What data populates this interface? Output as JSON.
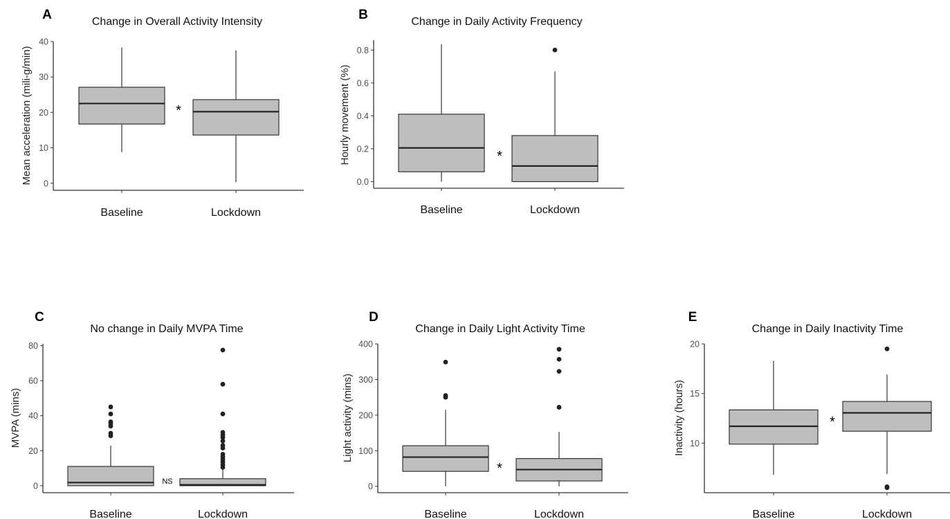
{
  "chart_data": [
    {
      "letter": "A",
      "type": "box",
      "title": "Change in Overall Activity Intensity",
      "ylabel": "Mean acceleration (mili-g/min)",
      "ylim": [
        -2,
        40
      ],
      "yticks": [
        0,
        10,
        20,
        30,
        40
      ],
      "categories": [
        "Baseline",
        "Lockdown"
      ],
      "boxes": [
        {
          "q1": 16.7,
          "median": 22.5,
          "q3": 27.1,
          "whisker_low": 8.8,
          "whisker_high": 38.3,
          "outliers": []
        },
        {
          "q1": 13.6,
          "median": 20.2,
          "q3": 23.6,
          "whisker_low": 0.3,
          "whisker_high": 37.5,
          "outliers": []
        }
      ],
      "significance": "*"
    },
    {
      "letter": "B",
      "type": "box",
      "title": "Change in Daily Activity Frequency",
      "ylabel": "Hourly movement (%)",
      "ylim": [
        -0.04,
        0.86
      ],
      "yticks": [
        0.0,
        0.2,
        0.4,
        0.6,
        0.8
      ],
      "ytick_labels": [
        "0.0",
        "0.2",
        "0.4",
        "0.6",
        "0.8"
      ],
      "categories": [
        "Baseline",
        "Lockdown"
      ],
      "boxes": [
        {
          "q1": 0.06,
          "median": 0.205,
          "q3": 0.41,
          "whisker_low": 0.0,
          "whisker_high": 0.835,
          "outliers": []
        },
        {
          "q1": 0.0,
          "median": 0.095,
          "q3": 0.28,
          "whisker_low": 0.0,
          "whisker_high": 0.67,
          "outliers": [
            0.8
          ]
        }
      ],
      "significance": "*"
    },
    {
      "letter": "C",
      "type": "box",
      "title": "No change in Daily MVPA Time",
      "ylabel": "MVPA (mins)",
      "ylim": [
        -4,
        81
      ],
      "yticks": [
        0,
        20,
        40,
        60,
        80
      ],
      "categories": [
        "Baseline",
        "Lockdown"
      ],
      "boxes": [
        {
          "q1": 0.0,
          "median": 1.8,
          "q3": 11.0,
          "whisker_low": 0.0,
          "whisker_high": 23.0,
          "outliers": [
            28.5,
            30.0,
            34.0,
            35.5,
            36.5,
            41.0,
            45.0
          ]
        },
        {
          "q1": 0.0,
          "median": 0.5,
          "q3": 4.0,
          "whisker_low": 0.0,
          "whisker_high": 9.5,
          "outliers": [
            10.5,
            12.0,
            13.5,
            15.0,
            16.5,
            18.0,
            21.5,
            23.0,
            25.5,
            27.5,
            29.0,
            30.5,
            41.0,
            58.0,
            77.5
          ]
        }
      ],
      "significance": "NS"
    },
    {
      "letter": "D",
      "type": "box",
      "title": "Change in Daily Light Activity Time",
      "ylabel": "Light activity (mins)",
      "ylim": [
        -18,
        400
      ],
      "yticks": [
        0,
        100,
        200,
        300,
        400
      ],
      "categories": [
        "Baseline",
        "Lockdown"
      ],
      "boxes": [
        {
          "q1": 42,
          "median": 82,
          "q3": 114,
          "whisker_low": 0,
          "whisker_high": 215,
          "outliers": [
            250,
            255,
            349
          ]
        },
        {
          "q1": 15,
          "median": 47,
          "q3": 78,
          "whisker_low": 0,
          "whisker_high": 153,
          "outliers": [
            222,
            323,
            357,
            385
          ]
        }
      ],
      "significance": "*"
    },
    {
      "letter": "E",
      "type": "box",
      "title": "Change in Daily Inactivity Time",
      "ylabel": "Inactivity (hours)",
      "ylim": [
        5.0,
        20.0
      ],
      "yticks": [
        10,
        15,
        20
      ],
      "categories": [
        "Baseline",
        "Lockdown"
      ],
      "boxes": [
        {
          "q1": 9.9,
          "median": 11.7,
          "q3": 13.35,
          "whisker_low": 6.8,
          "whisker_high": 18.3,
          "outliers": []
        },
        {
          "q1": 11.2,
          "median": 13.05,
          "q3": 14.2,
          "whisker_low": 6.9,
          "whisker_high": 16.9,
          "outliers": [
            5.5,
            5.6,
            19.5
          ]
        }
      ],
      "significance": "*"
    }
  ]
}
